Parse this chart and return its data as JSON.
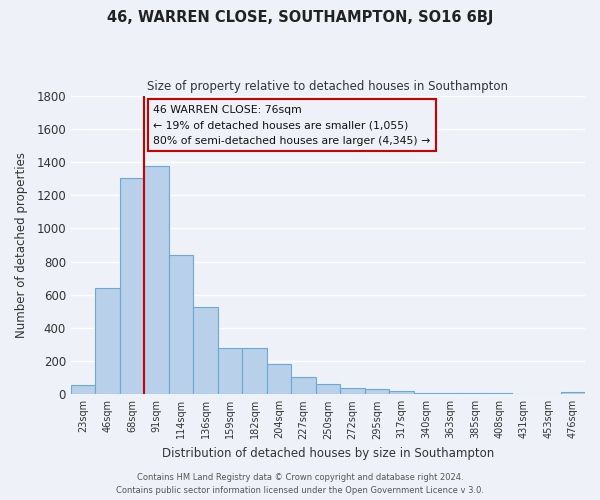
{
  "title": "46, WARREN CLOSE, SOUTHAMPTON, SO16 6BJ",
  "subtitle": "Size of property relative to detached houses in Southampton",
  "xlabel": "Distribution of detached houses by size in Southampton",
  "ylabel": "Number of detached properties",
  "categories": [
    "23sqm",
    "46sqm",
    "68sqm",
    "91sqm",
    "114sqm",
    "136sqm",
    "159sqm",
    "182sqm",
    "204sqm",
    "227sqm",
    "250sqm",
    "272sqm",
    "295sqm",
    "317sqm",
    "340sqm",
    "363sqm",
    "385sqm",
    "408sqm",
    "431sqm",
    "453sqm",
    "476sqm"
  ],
  "values": [
    55,
    640,
    1305,
    1375,
    840,
    525,
    280,
    280,
    180,
    105,
    65,
    40,
    30,
    20,
    10,
    5,
    5,
    5,
    2,
    0,
    12
  ],
  "bar_color": "#b8d0ea",
  "bar_edge_color": "#6aaad4",
  "ylim": [
    0,
    1800
  ],
  "yticks": [
    0,
    200,
    400,
    600,
    800,
    1000,
    1200,
    1400,
    1600,
    1800
  ],
  "vline_x_idx": 2.5,
  "vline_color": "#cc0000",
  "annotation_title": "46 WARREN CLOSE: 76sqm",
  "annotation_line1": "← 19% of detached houses are smaller (1,055)",
  "annotation_line2": "80% of semi-detached houses are larger (4,345) →",
  "annotation_box_color": "#cc0000",
  "background_color": "#eef2f8",
  "grid_color": "#ffffff",
  "footer_line1": "Contains HM Land Registry data © Crown copyright and database right 2024.",
  "footer_line2": "Contains public sector information licensed under the Open Government Licence v 3.0."
}
